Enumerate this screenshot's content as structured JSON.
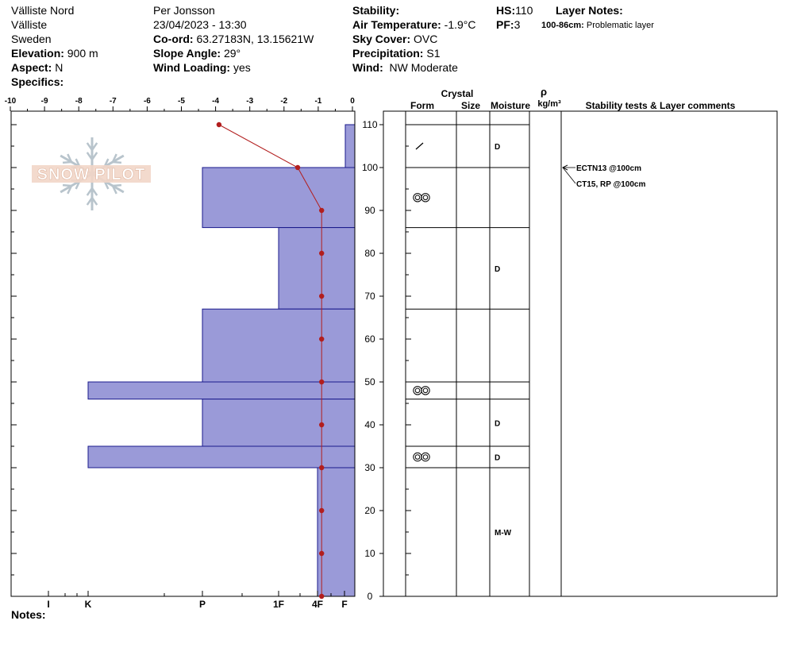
{
  "header": {
    "location": "Välliste Nord",
    "region": "Välliste",
    "country": "Sweden",
    "elevation_label": "Elevation:",
    "elevation": "900 m",
    "aspect_label": "Aspect:",
    "aspect": "N",
    "specifics_label": "Specifics:",
    "observer": "Per Jonsson",
    "datetime": "23/04/2023 - 13:30",
    "coord_label": "Co-ord:",
    "coord": "63.27183N, 13.15621W",
    "slope_label": "Slope Angle:",
    "slope": "29°",
    "wind_loading_label": "Wind Loading:",
    "wind_loading": "yes",
    "stability_label": "Stability:",
    "air_temp_label": "Air Temperature:",
    "air_temp": "-1.9°C",
    "sky_label": "Sky Cover:",
    "sky": "OVC",
    "precip_label": "Precipitation:",
    "precip": "S1",
    "wind_label": "Wind:",
    "wind": "NW Moderate",
    "hs_label": "HS:",
    "hs": "110",
    "pf_label": "PF:",
    "pf": "3",
    "layer_notes_label": "Layer Notes:",
    "layer_note_range": "100-86cm:",
    "layer_note_text": "Problematic layer"
  },
  "notes_label": "Notes:",
  "logo_text": "SNOW PILOT",
  "colors": {
    "hardness_fill": "#9a9ad8",
    "hardness_stroke": "#1a1a8c",
    "temp": "#b21e1e"
  },
  "columns": {
    "crystal": "Crystal",
    "form": "Form",
    "size": "Size",
    "moisture": "Moisture",
    "rho": "ρ",
    "density_unit": "kg/m³",
    "stability": "Stability tests & Layer comments"
  },
  "chart_data": {
    "type": "snow-profile",
    "temp_axis": {
      "min": -10,
      "max": 0,
      "ticks": [
        "-10",
        "-9",
        "-8",
        "-7",
        "-6",
        "-5",
        "-4",
        "-3",
        "-2",
        "-1",
        "0"
      ]
    },
    "depth_axis": {
      "min": 0,
      "max": 110,
      "ticks": [
        "0",
        "10",
        "20",
        "30",
        "40",
        "50",
        "60",
        "70",
        "80",
        "90",
        "100",
        "110"
      ]
    },
    "hardness_ticks": [
      {
        "label": "I",
        "pos": 1
      },
      {
        "label": "K",
        "pos": 2
      },
      {
        "label": "P",
        "pos": 3
      },
      {
        "label": "1F",
        "pos": 4
      },
      {
        "label": "4F",
        "pos": 5
      },
      {
        "label": "F",
        "pos": 6
      }
    ],
    "hardness_layers": [
      {
        "top": 110,
        "bottom": 100,
        "hardness": 5.6
      },
      {
        "top": 100,
        "bottom": 86,
        "hardness": 3
      },
      {
        "top": 86,
        "bottom": 67,
        "hardness": 4
      },
      {
        "top": 67,
        "bottom": 50,
        "hardness": 3
      },
      {
        "top": 50,
        "bottom": 46,
        "hardness": 2
      },
      {
        "top": 46,
        "bottom": 35,
        "hardness": 3
      },
      {
        "top": 35,
        "bottom": 30,
        "hardness": 2
      },
      {
        "top": 30,
        "bottom": 0,
        "hardness": 4.5
      }
    ],
    "temperature": [
      {
        "depth": 110,
        "temp": -3.9
      },
      {
        "depth": 100,
        "temp": -1.6
      },
      {
        "depth": 90,
        "temp": -0.9
      },
      {
        "depth": 80,
        "temp": -0.9
      },
      {
        "depth": 70,
        "temp": -0.9
      },
      {
        "depth": 60,
        "temp": -0.9
      },
      {
        "depth": 50,
        "temp": -0.9
      },
      {
        "depth": 40,
        "temp": -0.9
      },
      {
        "depth": 30,
        "temp": -0.9
      },
      {
        "depth": 20,
        "temp": -0.9
      },
      {
        "depth": 10,
        "temp": -0.9
      },
      {
        "depth": 0,
        "temp": -0.9
      }
    ],
    "layer_boundaries": [
      110,
      100,
      86,
      67,
      50,
      46,
      35,
      30,
      0
    ],
    "layers": [
      {
        "top": 110,
        "bottom": 100,
        "form": "precip-particle",
        "moisture": "D"
      },
      {
        "top": 100,
        "bottom": 86,
        "form": "surface-hoar",
        "moisture": ""
      },
      {
        "top": 86,
        "bottom": 67,
        "form": "",
        "moisture": "D"
      },
      {
        "top": 67,
        "bottom": 50,
        "form": "",
        "moisture": ""
      },
      {
        "top": 50,
        "bottom": 46,
        "form": "surface-hoar",
        "moisture": ""
      },
      {
        "top": 46,
        "bottom": 35,
        "form": "",
        "moisture": "D"
      },
      {
        "top": 35,
        "bottom": 30,
        "form": "surface-hoar",
        "moisture": "D"
      },
      {
        "top": 30,
        "bottom": 0,
        "form": "",
        "moisture": "M-W"
      }
    ],
    "stability_tests": [
      {
        "label": "ECTN13 @100cm",
        "depth": 100
      },
      {
        "label": "CT15, RP @100cm",
        "depth": 100
      }
    ]
  }
}
